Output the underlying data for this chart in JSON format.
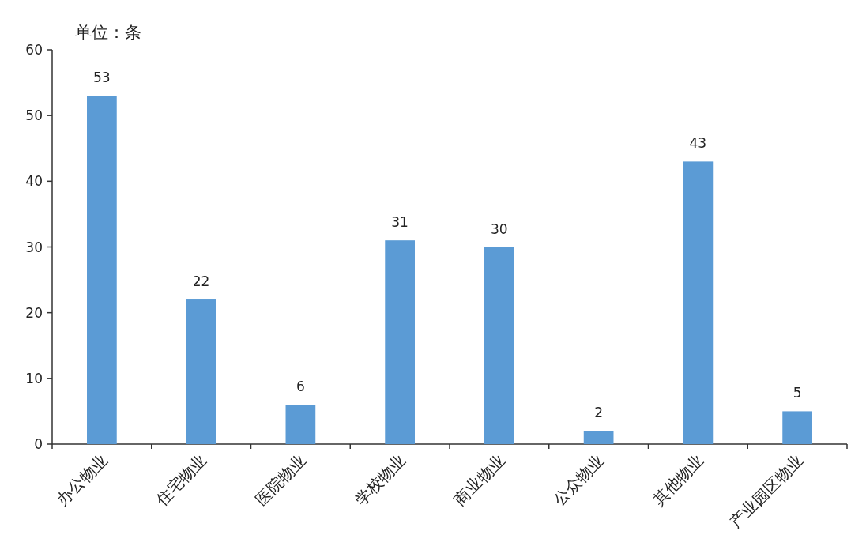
{
  "chart_data": {
    "type": "bar",
    "ylabel": "单位：条",
    "categories": [
      "办公物业",
      "住宅物业",
      "医院物业",
      "学校物业",
      "商业物业",
      "公众物业",
      "其他物业",
      "产业园区物业"
    ],
    "values": [
      53,
      22,
      6,
      31,
      30,
      2,
      43,
      5
    ],
    "color": "#5b9bd5",
    "ylim": [
      0,
      60
    ],
    "yticks": [
      0,
      10,
      20,
      30,
      40,
      50,
      60
    ],
    "data_labels": true
  }
}
